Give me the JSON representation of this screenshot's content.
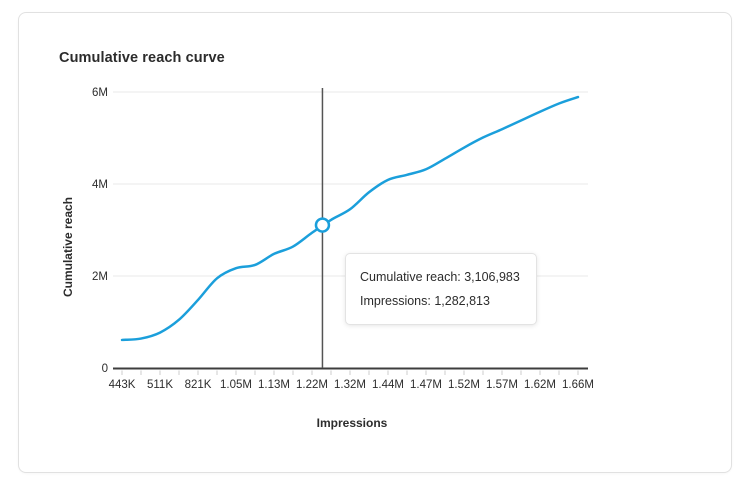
{
  "card": {
    "title": "Cumulative reach curve"
  },
  "chart_data": {
    "type": "line",
    "title": "Cumulative reach curve",
    "xlabel": "Impressions",
    "ylabel": "Cumulative reach",
    "x_tick_labels": [
      "443K",
      "511K",
      "821K",
      "1.05M",
      "1.13M",
      "1.22M",
      "1.32M",
      "1.44M",
      "1.47M",
      "1.52M",
      "1.57M",
      "1.62M",
      "1.66M"
    ],
    "points_per_label": 2,
    "y_ticks": [
      {
        "label": "0",
        "value": 0
      },
      {
        "label": "2M",
        "value": 2
      },
      {
        "label": "4M",
        "value": 4
      },
      {
        "label": "6M",
        "value": 6
      }
    ],
    "ylim": [
      0,
      6
    ],
    "unit": "millions",
    "grid": "horizontal",
    "legend": "none",
    "series": [
      {
        "name": "Cumulative reach",
        "color": "#1b9fdb",
        "values_m": [
          0.61,
          0.64,
          0.77,
          1.05,
          1.48,
          1.95,
          2.17,
          2.24,
          2.48,
          2.64,
          2.94,
          3.22,
          3.45,
          3.82,
          4.09,
          4.2,
          4.32,
          4.55,
          4.79,
          5.01,
          5.19,
          5.38,
          5.57,
          5.75,
          5.89
        ]
      }
    ],
    "highlight": {
      "point_index": 10.55,
      "reach_m": 3.107,
      "tooltip": {
        "lines": [
          "Cumulative reach: 3,106,983",
          "Impressions: 1,282,813"
        ]
      }
    }
  },
  "colors": {
    "line": "#1b9fdb",
    "grid": "#e9e9e9",
    "axis_baseline": "#3d3d3d",
    "tick": "#cccccc",
    "label_text": "#2d2d2d",
    "hover_rule": "#545454",
    "marker_fill": "#ffffff"
  }
}
